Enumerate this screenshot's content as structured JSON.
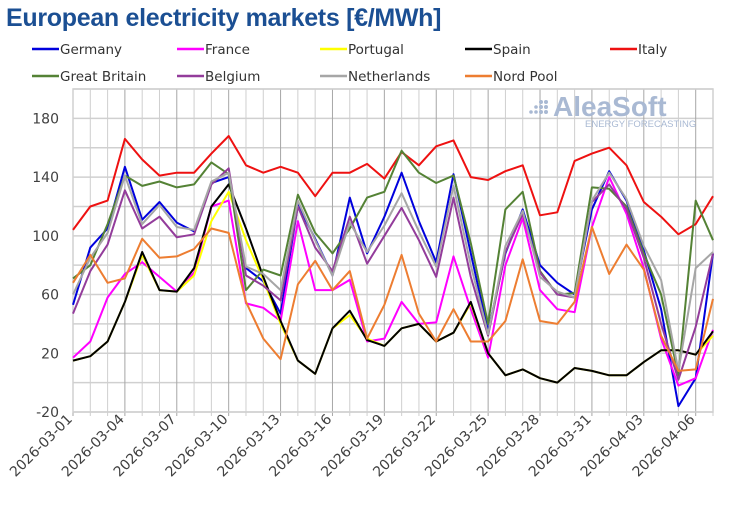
{
  "chart_data": {
    "type": "line",
    "title": "European electricity markets [€/MWh]",
    "xlabel": "",
    "ylabel": "",
    "ylim": [
      -20,
      200
    ],
    "yticks": [
      -20,
      20,
      60,
      100,
      140,
      180
    ],
    "grid": true,
    "legend_placement": "top",
    "x_start": "2026-03-01",
    "x": [
      "2026-03-01",
      "2026-03-02",
      "2026-03-03",
      "2026-03-04",
      "2026-03-05",
      "2026-03-06",
      "2026-03-07",
      "2026-03-08",
      "2026-03-09",
      "2026-03-10",
      "2026-03-11",
      "2026-03-12",
      "2026-03-13",
      "2026-03-14",
      "2026-03-15",
      "2026-03-16",
      "2026-03-17",
      "2026-03-18",
      "2026-03-19",
      "2026-03-20",
      "2026-03-21",
      "2026-03-22",
      "2026-03-23",
      "2026-03-24",
      "2026-03-25",
      "2026-03-26",
      "2026-03-27",
      "2026-03-28",
      "2026-03-29",
      "2026-03-30",
      "2026-03-31",
      "2026-04-01",
      "2026-04-02",
      "2026-04-03",
      "2026-04-04",
      "2026-04-05",
      "2026-04-06",
      "2026-04-07"
    ],
    "xtick_labels": [
      "2026-03-01",
      "2026-03-04",
      "2026-03-07",
      "2026-03-10",
      "2026-03-13",
      "2026-03-16",
      "2026-03-19",
      "2026-03-22",
      "2026-03-25",
      "2026-03-28",
      "2026-03-31",
      "2026-04-03",
      "2026-04-06"
    ],
    "watermark": "AleaSoft ENERGY FORECASTING",
    "series": [
      {
        "name": "Germany",
        "color": "#0000dd",
        "values": [
          53,
          92,
          105,
          147,
          111,
          123,
          109,
          103,
          136,
          140,
          78,
          69,
          47,
          121,
          98,
          73,
          126,
          88,
          113,
          143,
          110,
          82,
          142,
          88,
          35,
          88,
          118,
          80,
          68,
          60,
          118,
          144,
          124,
          90,
          50,
          -16,
          3,
          88
        ]
      },
      {
        "name": "France",
        "color": "#ff00ff",
        "values": [
          17,
          28,
          58,
          74,
          82,
          72,
          62,
          75,
          120,
          124,
          54,
          51,
          42,
          110,
          63,
          63,
          70,
          28,
          30,
          55,
          40,
          41,
          86,
          50,
          17,
          80,
          112,
          63,
          50,
          48,
          106,
          140,
          115,
          78,
          30,
          -2,
          3,
          36
        ]
      },
      {
        "name": "Portugal",
        "color": "#ffff00",
        "values": [
          15,
          18,
          28,
          55,
          87,
          63,
          62,
          73,
          110,
          130,
          97,
          70,
          40,
          15,
          6,
          37,
          46,
          30,
          25,
          37,
          40,
          28,
          34,
          54,
          20,
          5,
          9,
          3,
          0,
          10,
          8,
          5,
          5,
          14,
          22,
          22,
          19,
          32
        ]
      },
      {
        "name": "Spain",
        "color": "#000000",
        "values": [
          15,
          18,
          28,
          55,
          89,
          63,
          62,
          78,
          120,
          135,
          105,
          72,
          42,
          15,
          6,
          37,
          49,
          29,
          25,
          37,
          40,
          28,
          34,
          55,
          20,
          5,
          9,
          3,
          0,
          10,
          8,
          5,
          5,
          14,
          22,
          22,
          19,
          35
        ]
      },
      {
        "name": "Italy",
        "color": "#ee1111",
        "values": [
          104,
          120,
          124,
          166,
          152,
          141,
          143,
          143,
          156,
          168,
          148,
          143,
          147,
          143,
          127,
          143,
          143,
          149,
          139,
          157,
          148,
          161,
          165,
          140,
          138,
          144,
          148,
          114,
          116,
          151,
          156,
          160,
          148,
          123,
          113,
          101,
          108,
          127
        ]
      },
      {
        "name": "Great Britain",
        "color": "#548235",
        "values": [
          71,
          80,
          108,
          141,
          134,
          137,
          133,
          135,
          150,
          142,
          63,
          77,
          73,
          128,
          102,
          88,
          105,
          126,
          130,
          158,
          143,
          136,
          141,
          95,
          40,
          118,
          130,
          76,
          60,
          61,
          133,
          132,
          120,
          88,
          60,
          5,
          124,
          97
        ]
      },
      {
        "name": "Belgium",
        "color": "#933c9b",
        "values": [
          47,
          76,
          94,
          131,
          105,
          113,
          99,
          101,
          135,
          146,
          73,
          66,
          56,
          120,
          92,
          76,
          113,
          81,
          100,
          119,
          97,
          72,
          126,
          72,
          32,
          89,
          115,
          75,
          60,
          58,
          123,
          135,
          118,
          85,
          40,
          2,
          38,
          88
        ]
      },
      {
        "name": "Netherlands",
        "color": "#a6a6a6",
        "values": [
          60,
          85,
          102,
          141,
          108,
          121,
          106,
          104,
          137,
          143,
          79,
          74,
          63,
          124,
          97,
          73,
          109,
          89,
          107,
          129,
          103,
          79,
          134,
          80,
          33,
          93,
          117,
          72,
          62,
          58,
          124,
          143,
          125,
          93,
          70,
          8,
          78,
          89
        ]
      },
      {
        "name": "Nord Pool",
        "color": "#ed7d31",
        "values": [
          68,
          87,
          68,
          71,
          98,
          85,
          86,
          91,
          105,
          102,
          55,
          30,
          16,
          67,
          83,
          63,
          76,
          30,
          53,
          87,
          47,
          28,
          50,
          28,
          28,
          42,
          84,
          42,
          40,
          55,
          106,
          74,
          94,
          77,
          32,
          8,
          9,
          57
        ]
      }
    ]
  }
}
